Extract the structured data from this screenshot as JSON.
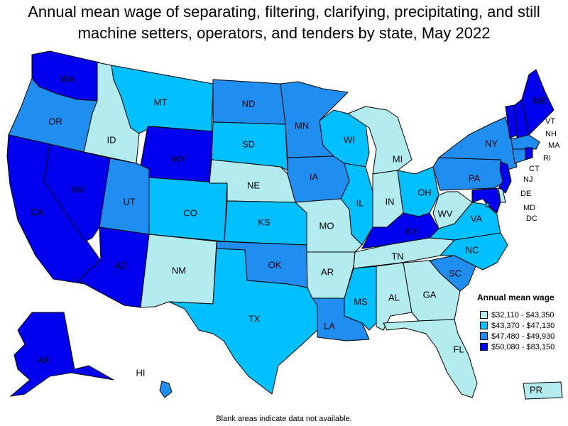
{
  "title": "Annual mean wage of separating, filtering, clarifying, precipitating, and still machine setters, operators, and tenders by state, May 2022",
  "legend": {
    "title": "Annual mean wage",
    "items": [
      {
        "range": "$32,110 - $43,350",
        "color": "#b3ecef"
      },
      {
        "range": "$43,370 - $47,130",
        "color": "#00c0ff"
      },
      {
        "range": "$47,480 - $49,930",
        "color": "#1f8ef0"
      },
      {
        "range": "$50,080 - $83,150",
        "color": "#0000ee"
      }
    ]
  },
  "footnote": "Blank areas indicate data not available.",
  "states": {
    "WA": {
      "label": "WA",
      "color": "#0000ee"
    },
    "OR": {
      "label": "OR",
      "color": "#1f8ef0"
    },
    "CA": {
      "label": "CA",
      "color": "#0000ee"
    },
    "NV": {
      "label": "NV",
      "color": "#0000ee"
    },
    "ID": {
      "label": "ID",
      "color": "#b3ecef"
    },
    "MT": {
      "label": "MT",
      "color": "#00c0ff"
    },
    "WY": {
      "label": "WY",
      "color": "#0000ee"
    },
    "UT": {
      "label": "UT",
      "color": "#1f8ef0"
    },
    "AZ": {
      "label": "AZ",
      "color": "#0000ee"
    },
    "CO": {
      "label": "CO",
      "color": "#00c0ff"
    },
    "NM": {
      "label": "NM",
      "color": "#b3ecef"
    },
    "ND": {
      "label": "ND",
      "color": "#1f8ef0"
    },
    "SD": {
      "label": "SD",
      "color": "#00c0ff"
    },
    "NE": {
      "label": "NE",
      "color": "#b3ecef"
    },
    "KS": {
      "label": "KS",
      "color": "#00c0ff"
    },
    "OK": {
      "label": "OK",
      "color": "#1f8ef0"
    },
    "TX": {
      "label": "TX",
      "color": "#00c0ff"
    },
    "MN": {
      "label": "MN",
      "color": "#1f8ef0"
    },
    "IA": {
      "label": "IA",
      "color": "#1f8ef0"
    },
    "MO": {
      "label": "MO",
      "color": "#b3ecef"
    },
    "AR": {
      "label": "AR",
      "color": "#b3ecef"
    },
    "LA": {
      "label": "LA",
      "color": "#1f8ef0"
    },
    "WI": {
      "label": "WI",
      "color": "#00c0ff"
    },
    "IL": {
      "label": "IL",
      "color": "#00c0ff"
    },
    "MI": {
      "label": "MI",
      "color": "#b3ecef"
    },
    "IN": {
      "label": "IN",
      "color": "#b3ecef"
    },
    "OH": {
      "label": "OH",
      "color": "#00c0ff"
    },
    "KY": {
      "label": "KY",
      "color": "#0000ee"
    },
    "TN": {
      "label": "TN",
      "color": "#b3ecef"
    },
    "MS": {
      "label": "MS",
      "color": "#00c0ff"
    },
    "AL": {
      "label": "AL",
      "color": "#b3ecef"
    },
    "GA": {
      "label": "GA",
      "color": "#b3ecef"
    },
    "FL": {
      "label": "FL",
      "color": "#b3ecef"
    },
    "SC": {
      "label": "SC",
      "color": "#1f8ef0"
    },
    "NC": {
      "label": "NC",
      "color": "#00c0ff"
    },
    "VA": {
      "label": "VA",
      "color": "#00c0ff"
    },
    "WV": {
      "label": "WV",
      "color": "#b3ecef"
    },
    "PA": {
      "label": "PA",
      "color": "#1f8ef0"
    },
    "NY": {
      "label": "NY",
      "color": "#1f8ef0"
    },
    "ME": {
      "label": "ME",
      "color": "#0000ee"
    },
    "VT": {
      "label": "VT",
      "color": "#0000ee"
    },
    "NH": {
      "label": "NH",
      "color": "#0000ee"
    },
    "MA": {
      "label": "MA",
      "color": "#1f8ef0"
    },
    "RI": {
      "label": "RI",
      "color": "#0000ee"
    },
    "CT": {
      "label": "CT",
      "color": "#1f8ef0"
    },
    "NJ": {
      "label": "NJ",
      "color": "#0000ee"
    },
    "DE": {
      "label": "DE",
      "color": "#b3ecef"
    },
    "MD": {
      "label": "MD",
      "color": "#0000ee"
    },
    "DC": {
      "label": "DC",
      "color": "#00c0ff"
    },
    "AK": {
      "label": "AK",
      "color": "#0000ee"
    },
    "HI": {
      "label": "HI",
      "color": "#1f8ef0"
    },
    "PR": {
      "label": "PR",
      "color": "#b3ecef"
    }
  }
}
